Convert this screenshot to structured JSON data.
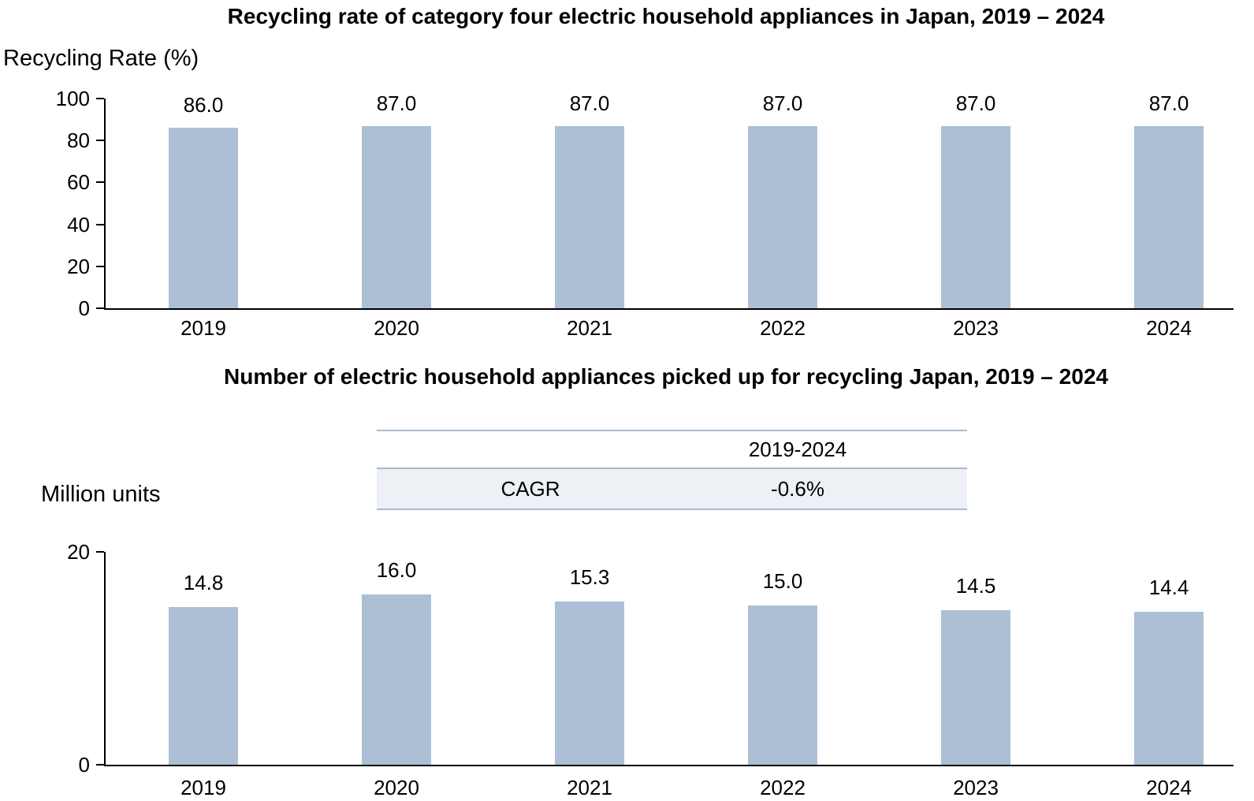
{
  "page": {
    "background": "#ffffff",
    "bar_color": "#ACBFD4",
    "table_line_color": "#A9BACD",
    "table_row_fill": "#EDF0F5"
  },
  "chart_data": [
    {
      "type": "bar",
      "title": "Recycling rate of category four electric household appliances in Japan, 2019 – 2024",
      "ylabel": "Recycling Rate (%)",
      "xlabel": "",
      "categories": [
        "2019",
        "2020",
        "2021",
        "2022",
        "2023",
        "2024"
      ],
      "values": [
        86.0,
        87.0,
        87.0,
        87.0,
        87.0,
        87.0
      ],
      "value_labels": [
        "86.0",
        "87.0",
        "87.0",
        "87.0",
        "87.0",
        "87.0"
      ],
      "yticks": [
        0,
        20,
        40,
        60,
        80,
        100
      ],
      "ylim": [
        0,
        100
      ],
      "bar_color": "#ACBFD4",
      "grid": false,
      "legend": "none"
    },
    {
      "type": "bar",
      "title": "Number of electric household appliances picked up for recycling Japan, 2019 – 2024",
      "ylabel": "Million units",
      "xlabel": "",
      "categories": [
        "2019",
        "2020",
        "2021",
        "2022",
        "2023",
        "2024"
      ],
      "values": [
        14.8,
        16.0,
        15.3,
        15.0,
        14.5,
        14.4
      ],
      "value_labels": [
        "14.8",
        "16.0",
        "15.3",
        "15.0",
        "14.5",
        "14.4"
      ],
      "yticks": [
        0,
        20
      ],
      "ylim": [
        0,
        20
      ],
      "bar_color": "#ACBFD4",
      "grid": false,
      "legend": "none",
      "cagr_table": {
        "header": "2019-2024",
        "row_label": "CAGR",
        "value": "-0.6%"
      }
    }
  ]
}
